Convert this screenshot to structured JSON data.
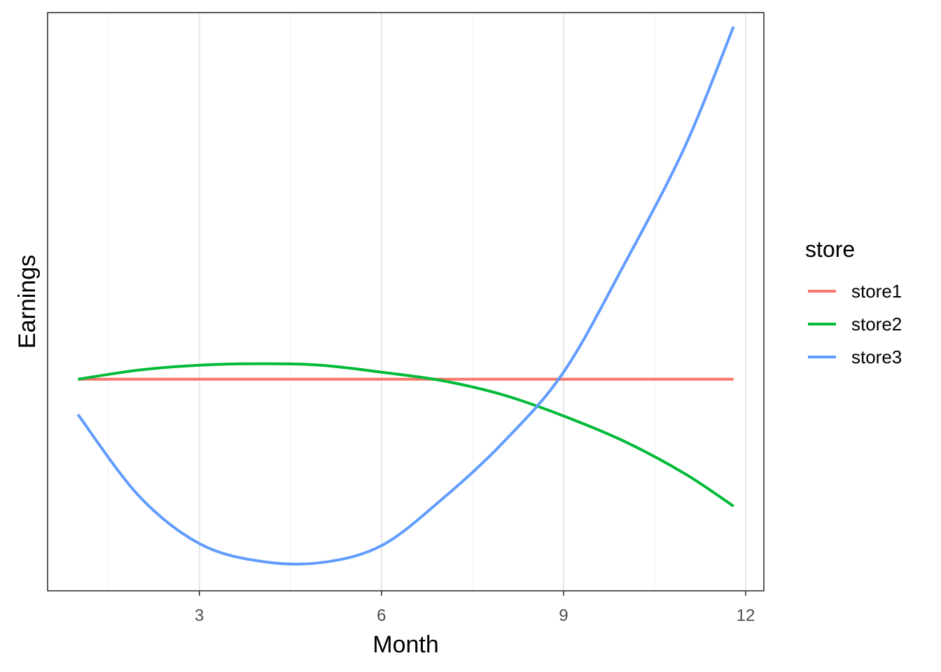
{
  "chart_data": {
    "type": "line",
    "title": "",
    "xlabel": "Month",
    "ylabel": "Earnings",
    "xlim": [
      0.5,
      12.3
    ],
    "ylim": [
      -2.0,
      6.2
    ],
    "x_ticks": [
      3,
      6,
      9,
      12
    ],
    "x_tick_labels": [
      "3",
      "6",
      "9",
      "12"
    ],
    "y_tick_labels": [],
    "grid": true,
    "legend": {
      "title": "store",
      "position": "right"
    },
    "series": [
      {
        "name": "store1",
        "color": "#F8766D",
        "x": [
          1,
          11.8
        ],
        "y": [
          1.0,
          1.0
        ]
      },
      {
        "name": "store2",
        "color": "#00BA38",
        "x": [
          1,
          2,
          3,
          4,
          5,
          6,
          7,
          8,
          9,
          10,
          11,
          11.8
        ],
        "y": [
          1.0,
          1.13,
          1.2,
          1.22,
          1.2,
          1.1,
          0.98,
          0.78,
          0.48,
          0.12,
          -0.34,
          -0.8
        ]
      },
      {
        "name": "store3",
        "color": "#619CFF",
        "x": [
          1,
          2,
          3,
          4,
          5,
          6,
          7,
          8,
          9,
          10,
          11,
          11.8
        ],
        "y": [
          0.5,
          -0.65,
          -1.33,
          -1.58,
          -1.6,
          -1.36,
          -0.7,
          0.1,
          1.1,
          2.63,
          4.3,
          6.0
        ]
      }
    ]
  }
}
